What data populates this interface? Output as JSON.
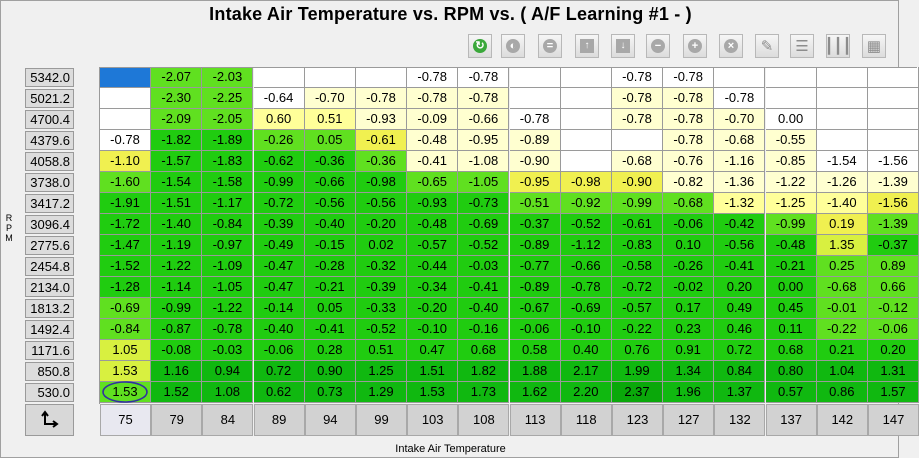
{
  "title": "Intake Air Temperature vs. RPM vs. ( A/F Learning #1 -   )",
  "y_axis_label": "RPM",
  "x_axis_label": "Intake Air Temperature",
  "toolbar": {
    "icons": [
      "refresh-icon",
      "disabled-circle-icon",
      "equals-icon",
      "arrow-up-icon",
      "arrow-down-icon",
      "minus-icon",
      "plus-icon",
      "close-icon",
      "pencil-icon",
      "rows-icon",
      "columns-icon",
      "table-icon"
    ]
  },
  "rpm": [
    "5342.0",
    "5021.2",
    "4700.4",
    "4379.6",
    "4058.8",
    "3738.0",
    "3417.2",
    "3096.4",
    "2775.6",
    "2454.8",
    "2134.0",
    "1813.2",
    "1492.4",
    "1171.6",
    "850.8",
    "530.0"
  ],
  "iat": [
    "75",
    "79",
    "84",
    "89",
    "94",
    "99",
    "103",
    "108",
    "113",
    "118",
    "123",
    "127",
    "132",
    "137",
    "142",
    "147"
  ],
  "selected_column_index": 0,
  "selected_row_index": 15,
  "table": [
    [
      "",
      "-2.07",
      "-2.03",
      "",
      "",
      "",
      "-0.78",
      "-0.78",
      "",
      "",
      "-0.78",
      "-0.78",
      "",
      "",
      "",
      ""
    ],
    [
      "",
      "-2.30",
      "-2.25",
      "-0.64",
      "-0.70",
      "-0.78",
      "-0.78",
      "-0.78",
      "",
      "",
      "-0.78",
      "-0.78",
      "-0.78",
      "",
      "",
      ""
    ],
    [
      "",
      "-2.09",
      "-2.05",
      "0.60",
      "0.51",
      "-0.93",
      "-0.09",
      "-0.66",
      "-0.78",
      "",
      "-0.78",
      "-0.78",
      "-0.70",
      "0.00",
      "",
      ""
    ],
    [
      "-0.78",
      "-1.82",
      "-1.89",
      "-0.26",
      "0.05",
      "-0.61",
      "-0.48",
      "-0.95",
      "-0.89",
      "",
      "",
      "-0.78",
      "-0.68",
      "-0.55",
      "",
      ""
    ],
    [
      "-1.10",
      "-1.57",
      "-1.83",
      "-0.62",
      "-0.36",
      "-0.36",
      "-0.41",
      "-1.08",
      "-0.90",
      "",
      "-0.68",
      "-0.76",
      "-1.16",
      "-0.85",
      "-1.54",
      "-1.56"
    ],
    [
      "-1.60",
      "-1.54",
      "-1.58",
      "-0.99",
      "-0.66",
      "-0.98",
      "-0.65",
      "-1.05",
      "-0.95",
      "-0.98",
      "-0.90",
      "-0.82",
      "-1.36",
      "-1.22",
      "-1.26",
      "-1.39"
    ],
    [
      "-1.91",
      "-1.51",
      "-1.17",
      "-0.72",
      "-0.56",
      "-0.56",
      "-0.93",
      "-0.73",
      "-0.51",
      "-0.92",
      "-0.99",
      "-0.68",
      "-1.32",
      "-1.25",
      "-1.40",
      "-1.56"
    ],
    [
      "-1.72",
      "-1.40",
      "-0.84",
      "-0.39",
      "-0.40",
      "-0.20",
      "-0.48",
      "-0.69",
      "-0.37",
      "-0.52",
      "-0.61",
      "-0.06",
      "-0.42",
      "-0.99",
      "0.19",
      "-1.39"
    ],
    [
      "-1.47",
      "-1.19",
      "-0.97",
      "-0.49",
      "-0.15",
      "0.02",
      "-0.57",
      "-0.52",
      "-0.89",
      "-1.12",
      "-0.83",
      "0.10",
      "-0.56",
      "-0.48",
      "1.35",
      "-0.37"
    ],
    [
      "-1.52",
      "-1.22",
      "-1.09",
      "-0.47",
      "-0.28",
      "-0.32",
      "-0.44",
      "-0.03",
      "-0.77",
      "-0.66",
      "-0.58",
      "-0.26",
      "-0.41",
      "-0.21",
      "0.25",
      "0.89"
    ],
    [
      "-1.28",
      "-1.14",
      "-1.05",
      "-0.47",
      "-0.21",
      "-0.39",
      "-0.34",
      "-0.41",
      "-0.89",
      "-0.78",
      "-0.72",
      "-0.02",
      "0.20",
      "0.00",
      "-0.68",
      "0.66"
    ],
    [
      "-0.69",
      "-0.99",
      "-1.22",
      "-0.14",
      "0.05",
      "-0.33",
      "-0.20",
      "-0.40",
      "-0.67",
      "-0.69",
      "-0.57",
      "0.17",
      "0.49",
      "0.45",
      "-0.01",
      "-0.12"
    ],
    [
      "-0.84",
      "-0.87",
      "-0.78",
      "-0.40",
      "-0.41",
      "-0.52",
      "-0.10",
      "-0.16",
      "-0.06",
      "-0.10",
      "-0.22",
      "0.23",
      "0.46",
      "0.11",
      "-0.22",
      "-0.06"
    ],
    [
      "1.05",
      "-0.08",
      "-0.03",
      "-0.06",
      "0.28",
      "0.51",
      "0.47",
      "0.68",
      "0.58",
      "0.40",
      "0.76",
      "0.91",
      "0.72",
      "0.68",
      "0.21",
      "0.20"
    ],
    [
      "1.53",
      "1.16",
      "0.94",
      "0.72",
      "0.90",
      "1.25",
      "1.51",
      "1.82",
      "1.88",
      "2.17",
      "1.99",
      "1.34",
      "0.84",
      "0.80",
      "1.04",
      "1.31"
    ],
    [
      "1.53",
      "1.52",
      "1.08",
      "0.62",
      "0.73",
      "1.29",
      "1.53",
      "1.73",
      "1.62",
      "2.20",
      "2.37",
      "1.96",
      "1.37",
      "0.57",
      "0.86",
      "1.57"
    ]
  ],
  "colors": {
    "blank": "#ffffff",
    "selected_cell": "#1e78d7",
    "very_light": "#ffffd0",
    "light_yellow": "#ffff99",
    "yellow": "#f0f050",
    "yellow_green": "#d8f040",
    "light_green": "#60e020",
    "green": "#20cc10",
    "dark_green": "#10b810",
    "darkest_green": "#0aa80a"
  },
  "cell_colors": [
    [
      "selected_cell",
      "light_green",
      "light_green",
      "blank",
      "blank",
      "blank",
      "blank",
      "blank",
      "blank",
      "blank",
      "blank",
      "blank",
      "blank",
      "blank",
      "blank",
      "blank"
    ],
    [
      "blank",
      "light_green",
      "light_green",
      "blank",
      "very_light",
      "very_light",
      "very_light",
      "very_light",
      "blank",
      "blank",
      "very_light",
      "very_light",
      "blank",
      "blank",
      "blank",
      "blank"
    ],
    [
      "blank",
      "light_green",
      "light_green",
      "light_yellow",
      "light_yellow",
      "very_light",
      "very_light",
      "very_light",
      "blank",
      "blank",
      "very_light",
      "very_light",
      "very_light",
      "blank",
      "blank",
      "blank"
    ],
    [
      "blank",
      "green",
      "green",
      "light_green",
      "light_green",
      "yellow",
      "very_light",
      "very_light",
      "very_light",
      "blank",
      "blank",
      "very_light",
      "very_light",
      "very_light",
      "blank",
      "blank"
    ],
    [
      "yellow",
      "green",
      "green",
      "green",
      "green",
      "light_green",
      "very_light",
      "very_light",
      "very_light",
      "blank",
      "very_light",
      "very_light",
      "very_light",
      "very_light",
      "blank",
      "blank"
    ],
    [
      "light_green",
      "green",
      "green",
      "green",
      "green",
      "green",
      "light_green",
      "light_green",
      "yellow",
      "yellow",
      "yellow",
      "very_light",
      "very_light",
      "very_light",
      "very_light",
      "very_light"
    ],
    [
      "green",
      "green",
      "green",
      "green",
      "green",
      "green",
      "green",
      "green",
      "light_green",
      "light_green",
      "light_green",
      "light_green",
      "light_yellow",
      "light_yellow",
      "light_yellow",
      "yellow"
    ],
    [
      "green",
      "green",
      "green",
      "green",
      "green",
      "green",
      "green",
      "green",
      "green",
      "green",
      "green",
      "green",
      "green",
      "light_green",
      "yellow",
      "light_green"
    ],
    [
      "green",
      "green",
      "green",
      "green",
      "green",
      "green",
      "green",
      "green",
      "green",
      "green",
      "green",
      "green",
      "green",
      "green",
      "yellow_green",
      "green"
    ],
    [
      "green",
      "green",
      "green",
      "green",
      "green",
      "green",
      "green",
      "green",
      "green",
      "green",
      "green",
      "green",
      "green",
      "green",
      "light_green",
      "light_green"
    ],
    [
      "green",
      "green",
      "green",
      "green",
      "green",
      "green",
      "green",
      "green",
      "green",
      "green",
      "green",
      "green",
      "green",
      "green",
      "light_green",
      "light_green"
    ],
    [
      "light_green",
      "green",
      "green",
      "green",
      "green",
      "green",
      "green",
      "green",
      "green",
      "green",
      "green",
      "green",
      "green",
      "green",
      "light_green",
      "light_green"
    ],
    [
      "light_green",
      "green",
      "green",
      "green",
      "green",
      "green",
      "green",
      "green",
      "green",
      "green",
      "green",
      "green",
      "green",
      "green",
      "light_green",
      "light_green"
    ],
    [
      "yellow_green",
      "green",
      "green",
      "green",
      "green",
      "green",
      "green",
      "green",
      "green",
      "green",
      "green",
      "green",
      "green",
      "green",
      "green",
      "green"
    ],
    [
      "yellow_green",
      "dark_green",
      "dark_green",
      "dark_green",
      "dark_green",
      "dark_green",
      "dark_green",
      "dark_green",
      "dark_green",
      "dark_green",
      "dark_green",
      "dark_green",
      "dark_green",
      "dark_green",
      "dark_green",
      "dark_green"
    ],
    [
      "light_green",
      "dark_green",
      "dark_green",
      "dark_green",
      "dark_green",
      "dark_green",
      "dark_green",
      "dark_green",
      "dark_green",
      "dark_green",
      "darkest_green",
      "dark_green",
      "dark_green",
      "dark_green",
      "dark_green",
      "dark_green"
    ]
  ]
}
